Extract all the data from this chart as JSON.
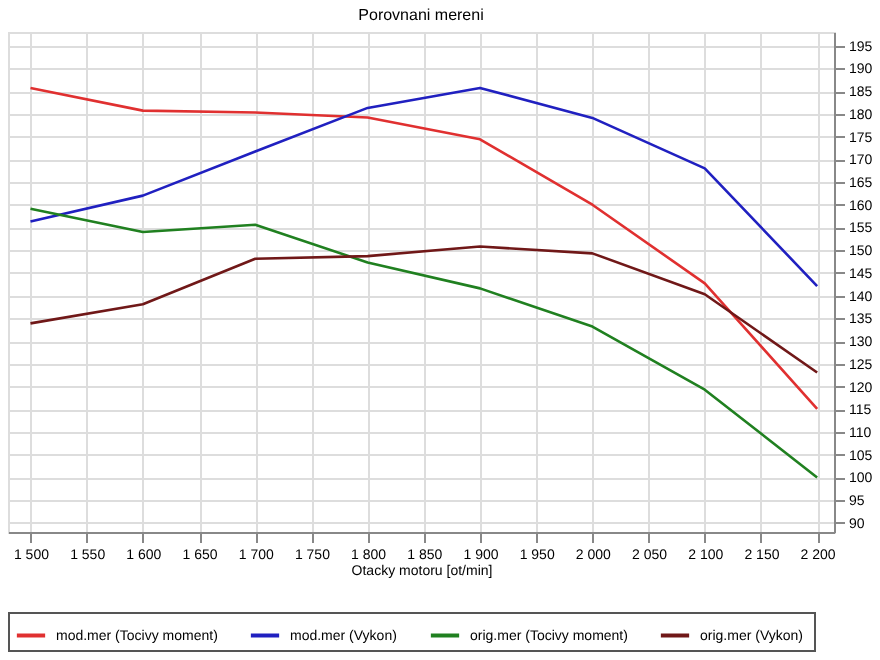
{
  "chart_data": {
    "type": "line",
    "title": "Porovnani mereni",
    "xlabel": "Otacky motoru [ot/min]",
    "x": [
      1500,
      1600,
      1700,
      1800,
      1900,
      2000,
      2100,
      2200
    ],
    "series": [
      {
        "name": "mod.mer  (Tocivy moment)",
        "color": "#e03030",
        "values": [
          185.7,
          180.7,
          180.3,
          179.2,
          174.4,
          160,
          142.7,
          115.1
        ]
      },
      {
        "name": "mod.mer  (Vykon)",
        "color": "#2020c0",
        "values": [
          156.3,
          162,
          171.7,
          181.3,
          185.7,
          179.1,
          168,
          142.1
        ]
      },
      {
        "name": "orig.mer  (Tocivy moment)",
        "color": "#208020",
        "values": [
          159.1,
          154,
          155.6,
          147.3,
          141.6,
          133.2,
          119.3,
          100
        ]
      },
      {
        "name": "orig.mer  (Vykon)",
        "color": "#701818",
        "values": [
          133.9,
          138.1,
          148.1,
          148.7,
          150.8,
          149.3,
          140.3,
          123.1
        ]
      }
    ],
    "xlim": [
      1480,
      2215
    ],
    "xticks": [
      {
        "value": 1500,
        "label": "1 500"
      },
      {
        "value": 1550,
        "label": "1 550"
      },
      {
        "value": 1600,
        "label": "1 600"
      },
      {
        "value": 1650,
        "label": "1 650"
      },
      {
        "value": 1700,
        "label": "1 700"
      },
      {
        "value": 1750,
        "label": "1 750"
      },
      {
        "value": 1800,
        "label": "1 800"
      },
      {
        "value": 1850,
        "label": "1 850"
      },
      {
        "value": 1900,
        "label": "1 900"
      },
      {
        "value": 1950,
        "label": "1 950"
      },
      {
        "value": 2000,
        "label": "2 000"
      },
      {
        "value": 2050,
        "label": "2 050"
      },
      {
        "value": 2100,
        "label": "2 100"
      },
      {
        "value": 2150,
        "label": "2 150"
      },
      {
        "value": 2200,
        "label": "2 200"
      }
    ],
    "ylim": [
      88,
      198
    ],
    "yticks": [
      90,
      95,
      100,
      105,
      110,
      115,
      120,
      125,
      130,
      135,
      140,
      145,
      150,
      155,
      160,
      165,
      170,
      175,
      180,
      185,
      190,
      195
    ],
    "grid": true,
    "legend": "bottom",
    "marker": "none",
    "line_style": "solid"
  }
}
